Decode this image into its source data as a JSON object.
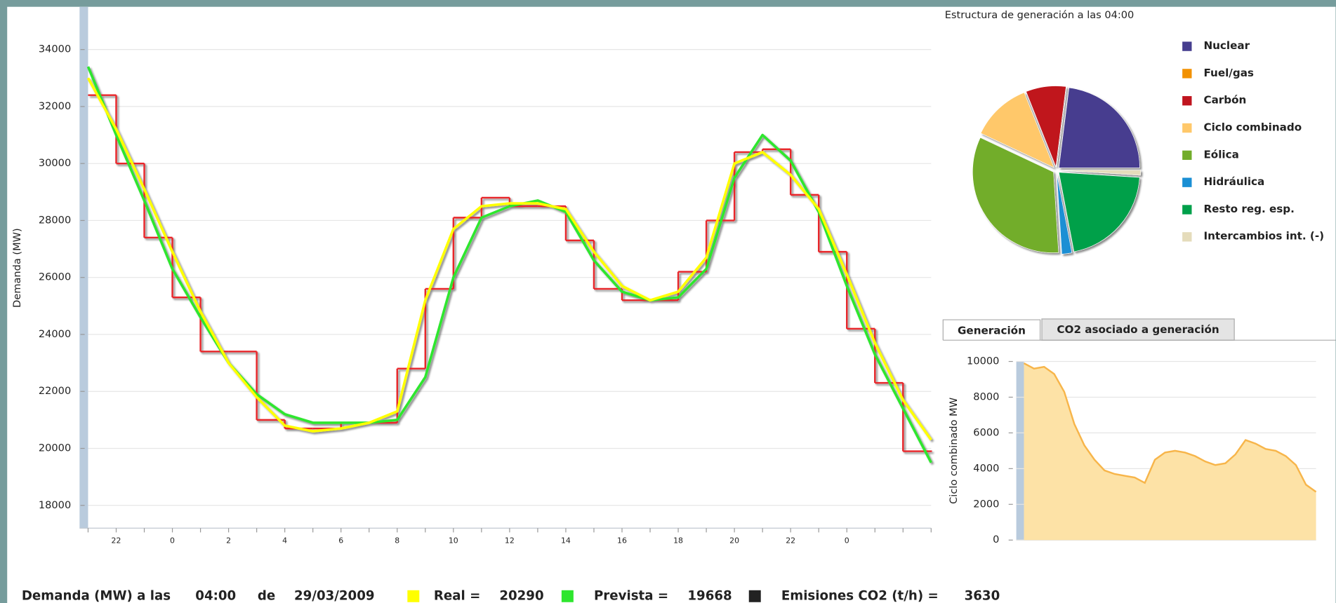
{
  "chart_data": [
    {
      "type": "line",
      "y_label": "Demanda (MW)",
      "categories": [
        null,
        "22",
        null,
        "0",
        null,
        "2",
        null,
        "4",
        null,
        "6",
        null,
        "8",
        null,
        "10",
        null,
        "12",
        null,
        "14",
        null,
        "16",
        null,
        "18",
        null,
        "20",
        null,
        "22",
        null,
        "0",
        null,
        null,
        null
      ],
      "ylim": [
        17200,
        35500
      ],
      "yticks": [
        18000,
        20000,
        22000,
        24000,
        26000,
        28000,
        30000,
        32000,
        34000
      ],
      "grid": true,
      "series": [
        {
          "color": "#e8262b",
          "style": "step",
          "values": [
            32400,
            30000,
            27400,
            25300,
            23400,
            23400,
            21000,
            20700,
            20700,
            20900,
            20900,
            22800,
            25600,
            28100,
            28800,
            28500,
            28500,
            27300,
            25600,
            25200,
            25200,
            26200,
            28000,
            30400,
            30500,
            28900,
            26900,
            24200,
            22300,
            19900,
            19900
          ]
        },
        {
          "color": "#2ee62e",
          "values": [
            33400,
            31000,
            28700,
            26300,
            24600,
            23000,
            21900,
            21200,
            20900,
            20900,
            20900,
            21000,
            22500,
            26000,
            28100,
            28500,
            28700,
            28300,
            26600,
            25500,
            25200,
            25300,
            26300,
            29500,
            31000,
            30100,
            28300,
            25700,
            23300,
            21400,
            19500
          ]
        },
        {
          "color": "#ffff00",
          "values": [
            33000,
            31200,
            29100,
            26900,
            24800,
            23000,
            21800,
            20800,
            20600,
            20700,
            20900,
            21300,
            25200,
            27700,
            28500,
            28600,
            28600,
            28400,
            26900,
            25700,
            25200,
            25500,
            26700,
            30000,
            30400,
            29600,
            28400,
            26100,
            23700,
            21700,
            20300
          ]
        }
      ]
    },
    {
      "type": "pie",
      "title": "Estructura de generación a las 04:00",
      "categories": [
        "Nuclear",
        "Fuel/gas",
        "Carbón",
        "Ciclo combinado",
        "Eólica",
        "Hidráulica",
        "Resto reg. esp.",
        "Intercambios int. (-)"
      ],
      "values": [
        23,
        0,
        8,
        12,
        33,
        2,
        21,
        1
      ],
      "colors": [
        "#463e8f",
        "#f29100",
        "#c0141e",
        "#ffc86a",
        "#72ad2b",
        "#1a8fd4",
        "#00a04a",
        "#e5dcbb"
      ]
    },
    {
      "type": "area",
      "y_label": "Ciclo combinado MW",
      "color": "#f7b54a",
      "fill": "#fde2a6",
      "ylim": [
        0,
        10000
      ],
      "yticks": [
        0,
        2000,
        4000,
        6000,
        8000,
        10000
      ],
      "grid": true,
      "values": [
        9900,
        9600,
        9700,
        9300,
        8300,
        6500,
        5300,
        4500,
        3900,
        3700,
        3600,
        3500,
        3200,
        4500,
        4900,
        5000,
        4900,
        4700,
        4400,
        4200,
        4300,
        4800,
        5600,
        5400,
        5100,
        5000,
        4700,
        4200,
        3100,
        2700
      ]
    }
  ],
  "tabs": [
    "Generación",
    "CO2 asociado a generación"
  ],
  "footer": {
    "label": "Demanda (MW) a las",
    "time": "04:00",
    "of": "de",
    "date": "29/03/2009",
    "real_label": "Real =",
    "real": "20290",
    "forecast_label": "Prevista =",
    "forecast": "19668",
    "co2_label": "Emisiones CO2 (t/h) =",
    "co2": "3630"
  }
}
